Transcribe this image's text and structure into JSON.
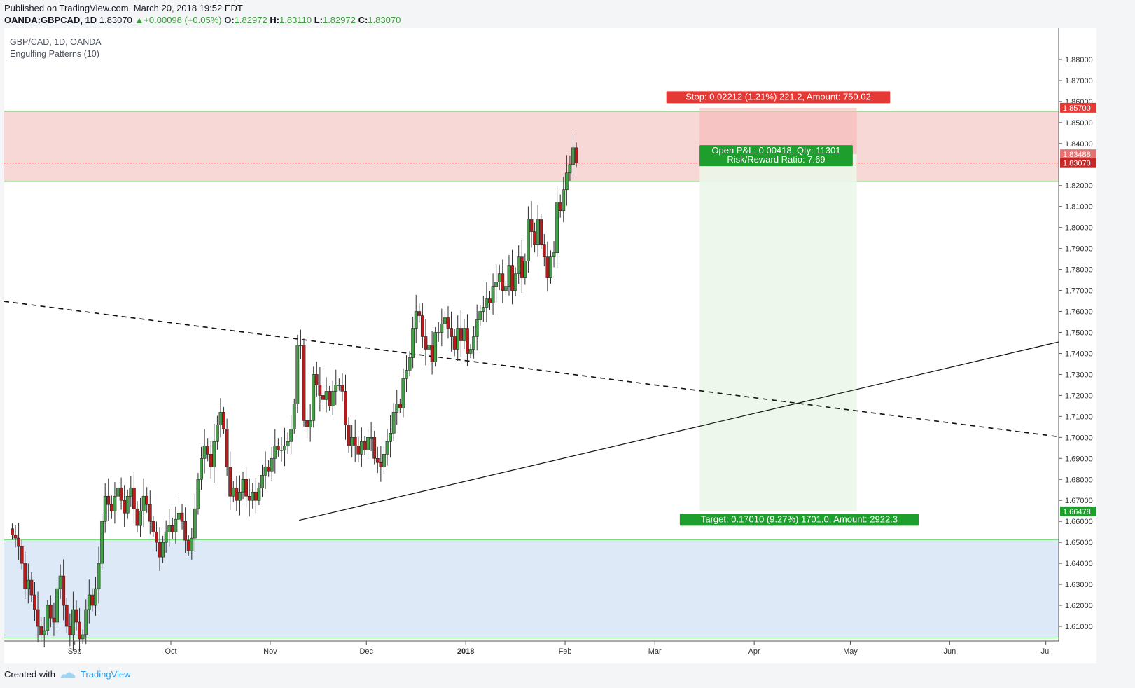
{
  "header": {
    "published": "Published on TradingView.com, March 20, 2018 19:52 EDT",
    "symbol": "OANDA:GBPCAD, 1D",
    "last": "1.83070",
    "change": "+0.00098 (+0.05%)",
    "o_label": "O:",
    "o": "1.82972",
    "h_label": "H:",
    "h": "1.83110",
    "l_label": "L:",
    "l": "1.82972",
    "c_label": "C:",
    "c": "1.83070"
  },
  "legend": {
    "title": "GBP/CAD, 1D, OANDA",
    "indicator": "Engulfing Patterns (10)"
  },
  "footer": {
    "created_with": "Created with",
    "brand": "TradingView"
  },
  "colors": {
    "up": "#43a047",
    "down": "#b71c1c",
    "stop_zone": "#f8d7d7",
    "target_zone": "#ecf6ea",
    "demand_zone": "#dde9f6",
    "zone_line": "#5cd65c",
    "stop_label": "#e53935",
    "target_label": "#1e9e2d"
  },
  "chart_data": {
    "type": "candlestick",
    "timeframe": "1D",
    "ylim": [
      1.603,
      1.895
    ],
    "y_ticks": [
      1.61,
      1.62,
      1.63,
      1.64,
      1.65,
      1.66,
      1.67,
      1.68,
      1.69,
      1.7,
      1.71,
      1.72,
      1.73,
      1.74,
      1.75,
      1.76,
      1.77,
      1.78,
      1.79,
      1.8,
      1.81,
      1.82,
      1.84,
      1.85,
      1.86,
      1.87,
      1.88
    ],
    "y_tick_labels": [
      "1.61000",
      "1.62000",
      "1.63000",
      "1.64000",
      "1.65000",
      "1.66000",
      "1.67000",
      "1.68000",
      "1.69000",
      "1.70000",
      "1.71000",
      "1.72000",
      "1.73000",
      "1.74000",
      "1.75000",
      "1.76000",
      "1.77000",
      "1.78000",
      "1.79000",
      "1.80000",
      "1.81000",
      "1.82000",
      "1.84000",
      "1.85000",
      "1.86000",
      "1.87000",
      "1.88000"
    ],
    "x_ticks": [
      {
        "label": "Sep",
        "day": 20
      },
      {
        "label": "Oct",
        "day": 50
      },
      {
        "label": "Nov",
        "day": 81
      },
      {
        "label": "Dec",
        "day": 111
      },
      {
        "label": "2018",
        "day": 142
      },
      {
        "label": "Feb",
        "day": 173
      },
      {
        "label": "Mar",
        "day": 201
      },
      {
        "label": "Apr",
        "day": 232
      },
      {
        "label": "May",
        "day": 262
      },
      {
        "label": "Jun",
        "day": 293
      },
      {
        "label": "Jul",
        "day": 323
      }
    ],
    "x_range_days": [
      -2,
      327
    ],
    "closes": [
      1.6535,
      1.652,
      1.648,
      1.64,
      1.628,
      1.632,
      1.625,
      1.618,
      1.61,
      1.606,
      1.608,
      1.62,
      1.614,
      1.612,
      1.628,
      1.634,
      1.62,
      1.61,
      1.606,
      1.618,
      1.612,
      1.604,
      1.606,
      1.618,
      1.625,
      1.62,
      1.628,
      1.64,
      1.66,
      1.672,
      1.668,
      1.665,
      1.672,
      1.676,
      1.67,
      1.664,
      1.672,
      1.676,
      1.666,
      1.658,
      1.665,
      1.672,
      1.668,
      1.66,
      1.655,
      1.65,
      1.643,
      1.65,
      1.655,
      1.658,
      1.655,
      1.661,
      1.664,
      1.66,
      1.651,
      1.646,
      1.652,
      1.666,
      1.68,
      1.69,
      1.696,
      1.692,
      1.686,
      1.698,
      1.706,
      1.712,
      1.704,
      1.686,
      1.672,
      1.676,
      1.67,
      1.674,
      1.68,
      1.672,
      1.67,
      1.674,
      1.67,
      1.676,
      1.682,
      1.686,
      1.684,
      1.69,
      1.696,
      1.694,
      1.694,
      1.696,
      1.698,
      1.704,
      1.716,
      1.744,
      1.744,
      1.708,
      1.705,
      1.708,
      1.73,
      1.725,
      1.72,
      1.718,
      1.722,
      1.715,
      1.722,
      1.725,
      1.725,
      1.722,
      1.706,
      1.696,
      1.7,
      1.696,
      1.692,
      1.698,
      1.694,
      1.7,
      1.7,
      1.69,
      1.688,
      1.686,
      1.692,
      1.698,
      1.702,
      1.712,
      1.716,
      1.714,
      1.728,
      1.732,
      1.738,
      1.752,
      1.76,
      1.758,
      1.748,
      1.742,
      1.744,
      1.736,
      1.75,
      1.75,
      1.754,
      1.757,
      1.752,
      1.748,
      1.742,
      1.752,
      1.746,
      1.752,
      1.74,
      1.742,
      1.748,
      1.756,
      1.76,
      1.762,
      1.766,
      1.764,
      1.772,
      1.774,
      1.778,
      1.77,
      1.772,
      1.782,
      1.77,
      1.778,
      1.786,
      1.776,
      1.784,
      1.804,
      1.798,
      1.792,
      1.804,
      1.792,
      1.786,
      1.776,
      1.786,
      1.788,
      1.812,
      1.808,
      1.818,
      1.826,
      1.83,
      1.838,
      1.8307
    ],
    "last_close": 1.8307,
    "dashed_trendline": {
      "p1": [
        -2,
        1.7648
      ],
      "p2": [
        327,
        1.7003
      ]
    },
    "solid_trendline": {
      "p1": [
        90,
        1.6605
      ],
      "p2": [
        327,
        1.7455
      ]
    },
    "demand_zone": {
      "top": 1.6513,
      "bottom": 1.6045
    },
    "supply_zone": {
      "top": 1.8553,
      "bottom": 1.8219
    },
    "position": {
      "type": "short",
      "entry": 1.83488,
      "stop": 1.857,
      "target": 1.66478,
      "start_day": 215,
      "end_day": 264,
      "stop_label": "Stop: 0.02212 (1.21%) 221.2, Amount: 750.02",
      "target_label": "Target: 0.17010 (9.27%) 1701.0, Amount: 2922.3",
      "pnl_label": "Open P&L: 0.00418, Qty: 11301",
      "rr_label": "Risk/Reward Ratio: 7.69"
    },
    "price_labels": [
      {
        "text": "1.85700",
        "value": 1.857,
        "color": "#e53935"
      },
      {
        "text": "1.83488",
        "value": 1.83488,
        "color": "#e57373"
      },
      {
        "text": "1.83070",
        "value": 1.8307,
        "color": "#c62828"
      },
      {
        "text": "1.66478",
        "value": 1.66478,
        "color": "#1e9e2d"
      }
    ]
  }
}
